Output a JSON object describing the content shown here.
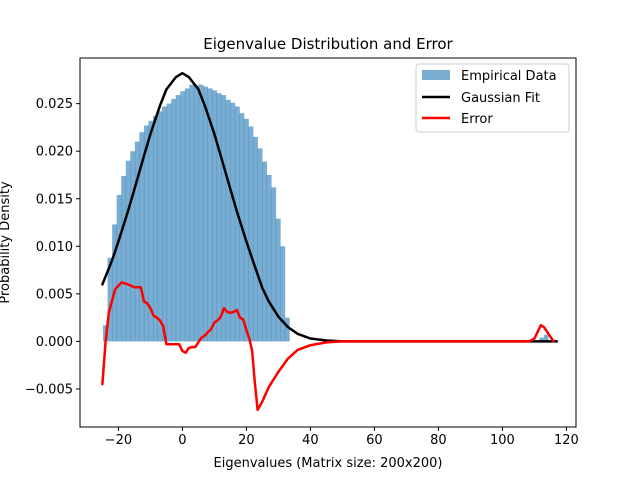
{
  "chart_data": {
    "type": "bar",
    "title": "Eigenvalue Distribution and Error",
    "xlabel": "Eigenvalues (Matrix size: 200x200)",
    "ylabel": "Probability Density",
    "xlim": [
      -32,
      123
    ],
    "ylim": [
      -0.009,
      0.0298
    ],
    "xticks": [
      -20,
      0,
      20,
      40,
      60,
      80,
      100,
      120
    ],
    "xtick_labels": [
      "−20",
      "0",
      "20",
      "40",
      "60",
      "80",
      "100",
      "120"
    ],
    "yticks": [
      -0.005,
      0.0,
      0.005,
      0.01,
      0.015,
      0.02,
      0.025
    ],
    "ytick_labels": [
      "−0.005",
      "0.000",
      "0.005",
      "0.010",
      "0.015",
      "0.020",
      "0.025"
    ],
    "grid": false,
    "legend_position": "top-right",
    "colors": {
      "histogram": "#1f77b4",
      "histogram_alpha": 0.6,
      "gaussian": "#000000",
      "error": "#ff0000"
    },
    "histogram": {
      "name": "Empirical Data",
      "bin_width": 1.42,
      "bin_start": -24.8,
      "values": [
        0.0017,
        0.0088,
        0.0123,
        0.0154,
        0.0174,
        0.019,
        0.02,
        0.021,
        0.022,
        0.0227,
        0.0232,
        0.0237,
        0.0242,
        0.0247,
        0.025,
        0.0255,
        0.0259,
        0.0263,
        0.0266,
        0.027,
        0.0269,
        0.027,
        0.0268,
        0.0266,
        0.0264,
        0.0261,
        0.0259,
        0.0254,
        0.0251,
        0.0247,
        0.024,
        0.0234,
        0.0226,
        0.0215,
        0.0203,
        0.0189,
        0.0175,
        0.0162,
        0.0129,
        0.01,
        0.0025,
        0.0
      ],
      "outlier_bins": [
        {
          "x": 111.6,
          "value": 0.0004
        },
        {
          "x": 113.0,
          "value": 0.0007
        }
      ]
    },
    "series": [
      {
        "name": "Gaussian Fit",
        "x": [
          -25,
          -22,
          -20,
          -17,
          -15,
          -12,
          -10,
          -7,
          -5,
          -2,
          0,
          2,
          5,
          7,
          10,
          12,
          15,
          17,
          20,
          22,
          25,
          27,
          30,
          33,
          36,
          40,
          45,
          50,
          55,
          60,
          70,
          80,
          90,
          100,
          110,
          117
        ],
        "y": [
          0.006,
          0.0085,
          0.0105,
          0.0137,
          0.016,
          0.0195,
          0.0218,
          0.0248,
          0.0265,
          0.0278,
          0.0282,
          0.0278,
          0.0265,
          0.0248,
          0.0218,
          0.0195,
          0.016,
          0.0137,
          0.0105,
          0.0085,
          0.0056,
          0.0042,
          0.0026,
          0.0015,
          0.0008,
          0.0003,
          0.0001,
          0.0,
          0.0,
          0.0,
          0.0,
          0.0,
          0.0,
          0.0,
          0.0,
          0.0
        ]
      },
      {
        "name": "Error",
        "x": [
          -25,
          -24,
          -23,
          -21,
          -19,
          -17,
          -15,
          -13,
          -12,
          -11,
          -10,
          -9,
          -8,
          -7,
          -6,
          -5,
          -4,
          -3,
          -2,
          -1,
          0,
          1,
          2,
          3,
          4,
          5,
          6,
          7,
          8,
          9,
          10,
          11,
          12,
          13,
          14,
          15,
          16,
          17,
          18,
          19,
          20,
          21,
          21.8,
          22.6,
          23.5,
          25,
          27,
          30,
          33,
          36,
          40,
          45,
          50,
          55,
          60,
          80,
          100,
          108,
          109,
          110,
          111,
          112,
          113,
          114,
          115,
          116
        ],
        "y": [
          -0.0045,
          0.0,
          0.003,
          0.0055,
          0.0062,
          0.006,
          0.0057,
          0.0057,
          0.0042,
          0.004,
          0.0035,
          0.0027,
          0.0025,
          0.0022,
          0.0016,
          -0.0003,
          -0.0003,
          -0.0003,
          -0.0003,
          -0.0003,
          -0.001,
          -0.0012,
          -0.0007,
          -0.0006,
          -0.0006,
          -0.0001,
          0.0004,
          0.0006,
          0.001,
          0.0013,
          0.002,
          0.0022,
          0.0026,
          0.0035,
          0.0031,
          0.003,
          0.0031,
          0.0033,
          0.0025,
          0.0023,
          0.0012,
          0.0002,
          -0.001,
          -0.0042,
          -0.0072,
          -0.0063,
          -0.0048,
          -0.0032,
          -0.0018,
          -0.0009,
          -0.0004,
          -0.0001,
          0.0,
          0.0,
          0.0,
          0.0,
          0.0,
          0.0,
          0.0001,
          0.0003,
          0.001,
          0.0017,
          0.0015,
          0.001,
          0.0005,
          0.0
        ]
      }
    ],
    "legend": [
      {
        "label": "Empirical Data",
        "kind": "patch"
      },
      {
        "label": "Gaussian Fit",
        "kind": "line"
      },
      {
        "label": "Error",
        "kind": "line"
      }
    ]
  }
}
